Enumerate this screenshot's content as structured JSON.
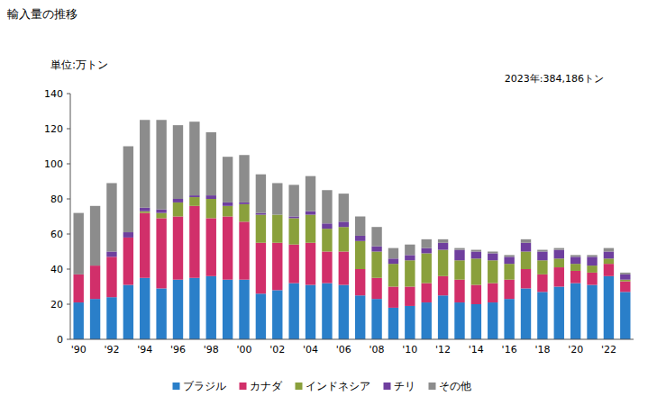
{
  "chart_data": {
    "type": "bar",
    "title": "輸入量の推移",
    "y_label": "単位:万トン",
    "annotation": "2023年:384,186トン",
    "stacked": true,
    "grid": false,
    "legend": "bottom",
    "categories": [
      "'90",
      null,
      "'92",
      null,
      "'94",
      null,
      "'96",
      null,
      "'98",
      null,
      "'00",
      null,
      "'02",
      null,
      "'04",
      null,
      "'06",
      null,
      "'08",
      null,
      "'10",
      null,
      "'12",
      null,
      "'14",
      null,
      "'16",
      null,
      "'18",
      null,
      "'20",
      null,
      "'22",
      null
    ],
    "ylim": [
      0,
      140
    ],
    "yticks": [
      0,
      20,
      40,
      60,
      80,
      100,
      120,
      140
    ],
    "series": [
      {
        "name": "ブラジル",
        "color": "#2a7fc9",
        "values": [
          21,
          23,
          24,
          31,
          35,
          29,
          34,
          35,
          36,
          34,
          34,
          26,
          28,
          32,
          31,
          32,
          31,
          25,
          23,
          18,
          19,
          21,
          25,
          21,
          20,
          21,
          23,
          29,
          27,
          30,
          32,
          31,
          36,
          27
        ]
      },
      {
        "name": "カナダ",
        "color": "#d12f6a",
        "values": [
          16,
          19,
          23,
          27,
          37,
          40,
          36,
          41,
          33,
          36,
          33,
          29,
          27,
          22,
          24,
          18,
          19,
          15,
          12,
          12,
          11,
          11,
          11,
          13,
          11,
          11,
          11,
          11,
          10,
          11,
          7,
          7,
          7,
          6
        ]
      },
      {
        "name": "インドネシア",
        "color": "#8aa03c",
        "values": [
          0,
          0,
          0,
          0,
          1,
          3,
          8,
          5,
          11,
          6,
          10,
          16,
          16,
          15,
          16,
          13,
          14,
          16,
          15,
          13,
          15,
          17,
          15,
          11,
          15,
          13,
          9,
          10,
          8,
          5,
          4,
          4,
          3,
          1
        ]
      },
      {
        "name": "チリ",
        "color": "#6f3f9e",
        "values": [
          0,
          0,
          3,
          3,
          2,
          2,
          2,
          1,
          2,
          2,
          1,
          1,
          0,
          1,
          2,
          3,
          3,
          3,
          3,
          3,
          3,
          3,
          4,
          6,
          4,
          4,
          4,
          5,
          5,
          5,
          4,
          5,
          4,
          3
        ]
      },
      {
        "name": "その他",
        "color": "#8c8c8c",
        "values": [
          35,
          34,
          39,
          49,
          50,
          51,
          42,
          42,
          36,
          26,
          27,
          22,
          18,
          18,
          20,
          19,
          16,
          11,
          11,
          6,
          6,
          5,
          2,
          1,
          1,
          1,
          1,
          2,
          1,
          1,
          1,
          1,
          2,
          1
        ]
      }
    ]
  }
}
